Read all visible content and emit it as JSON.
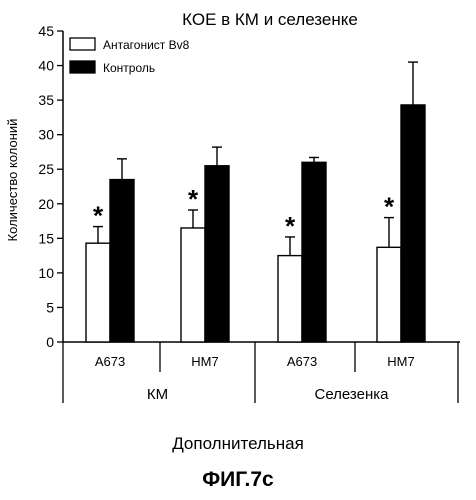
{
  "chart_data": {
    "type": "bar",
    "title": "КОЕ в КМ и селезенке",
    "ylabel": "Количество колоний",
    "xlabel": "",
    "ylim": [
      0,
      45
    ],
    "yticks": [
      0,
      5,
      10,
      15,
      20,
      25,
      30,
      35,
      40,
      45
    ],
    "categories": [
      "A673",
      "HM7",
      "A673",
      "HM7"
    ],
    "groups": [
      {
        "label": "КМ",
        "categories": [
          0,
          1
        ]
      },
      {
        "label": "Селезенка",
        "categories": [
          2,
          3
        ]
      }
    ],
    "series": [
      {
        "name": "Антагонист Bv8",
        "color": "#ffffff",
        "values": [
          14.3,
          16.5,
          12.5,
          13.7
        ],
        "errors": [
          2.4,
          2.6,
          2.7,
          4.3
        ],
        "significance": [
          "*",
          "*",
          "*",
          "*"
        ]
      },
      {
        "name": "Контроль",
        "color": "#000000",
        "values": [
          23.5,
          25.5,
          26.0,
          34.3
        ],
        "errors": [
          3.0,
          2.7,
          0.7,
          6.2
        ],
        "significance": [
          "",
          "",
          "",
          ""
        ]
      }
    ],
    "legend_position": "top-left",
    "grid": false
  },
  "caption": "Дополнительная",
  "figure_label": "ФИГ.7с"
}
